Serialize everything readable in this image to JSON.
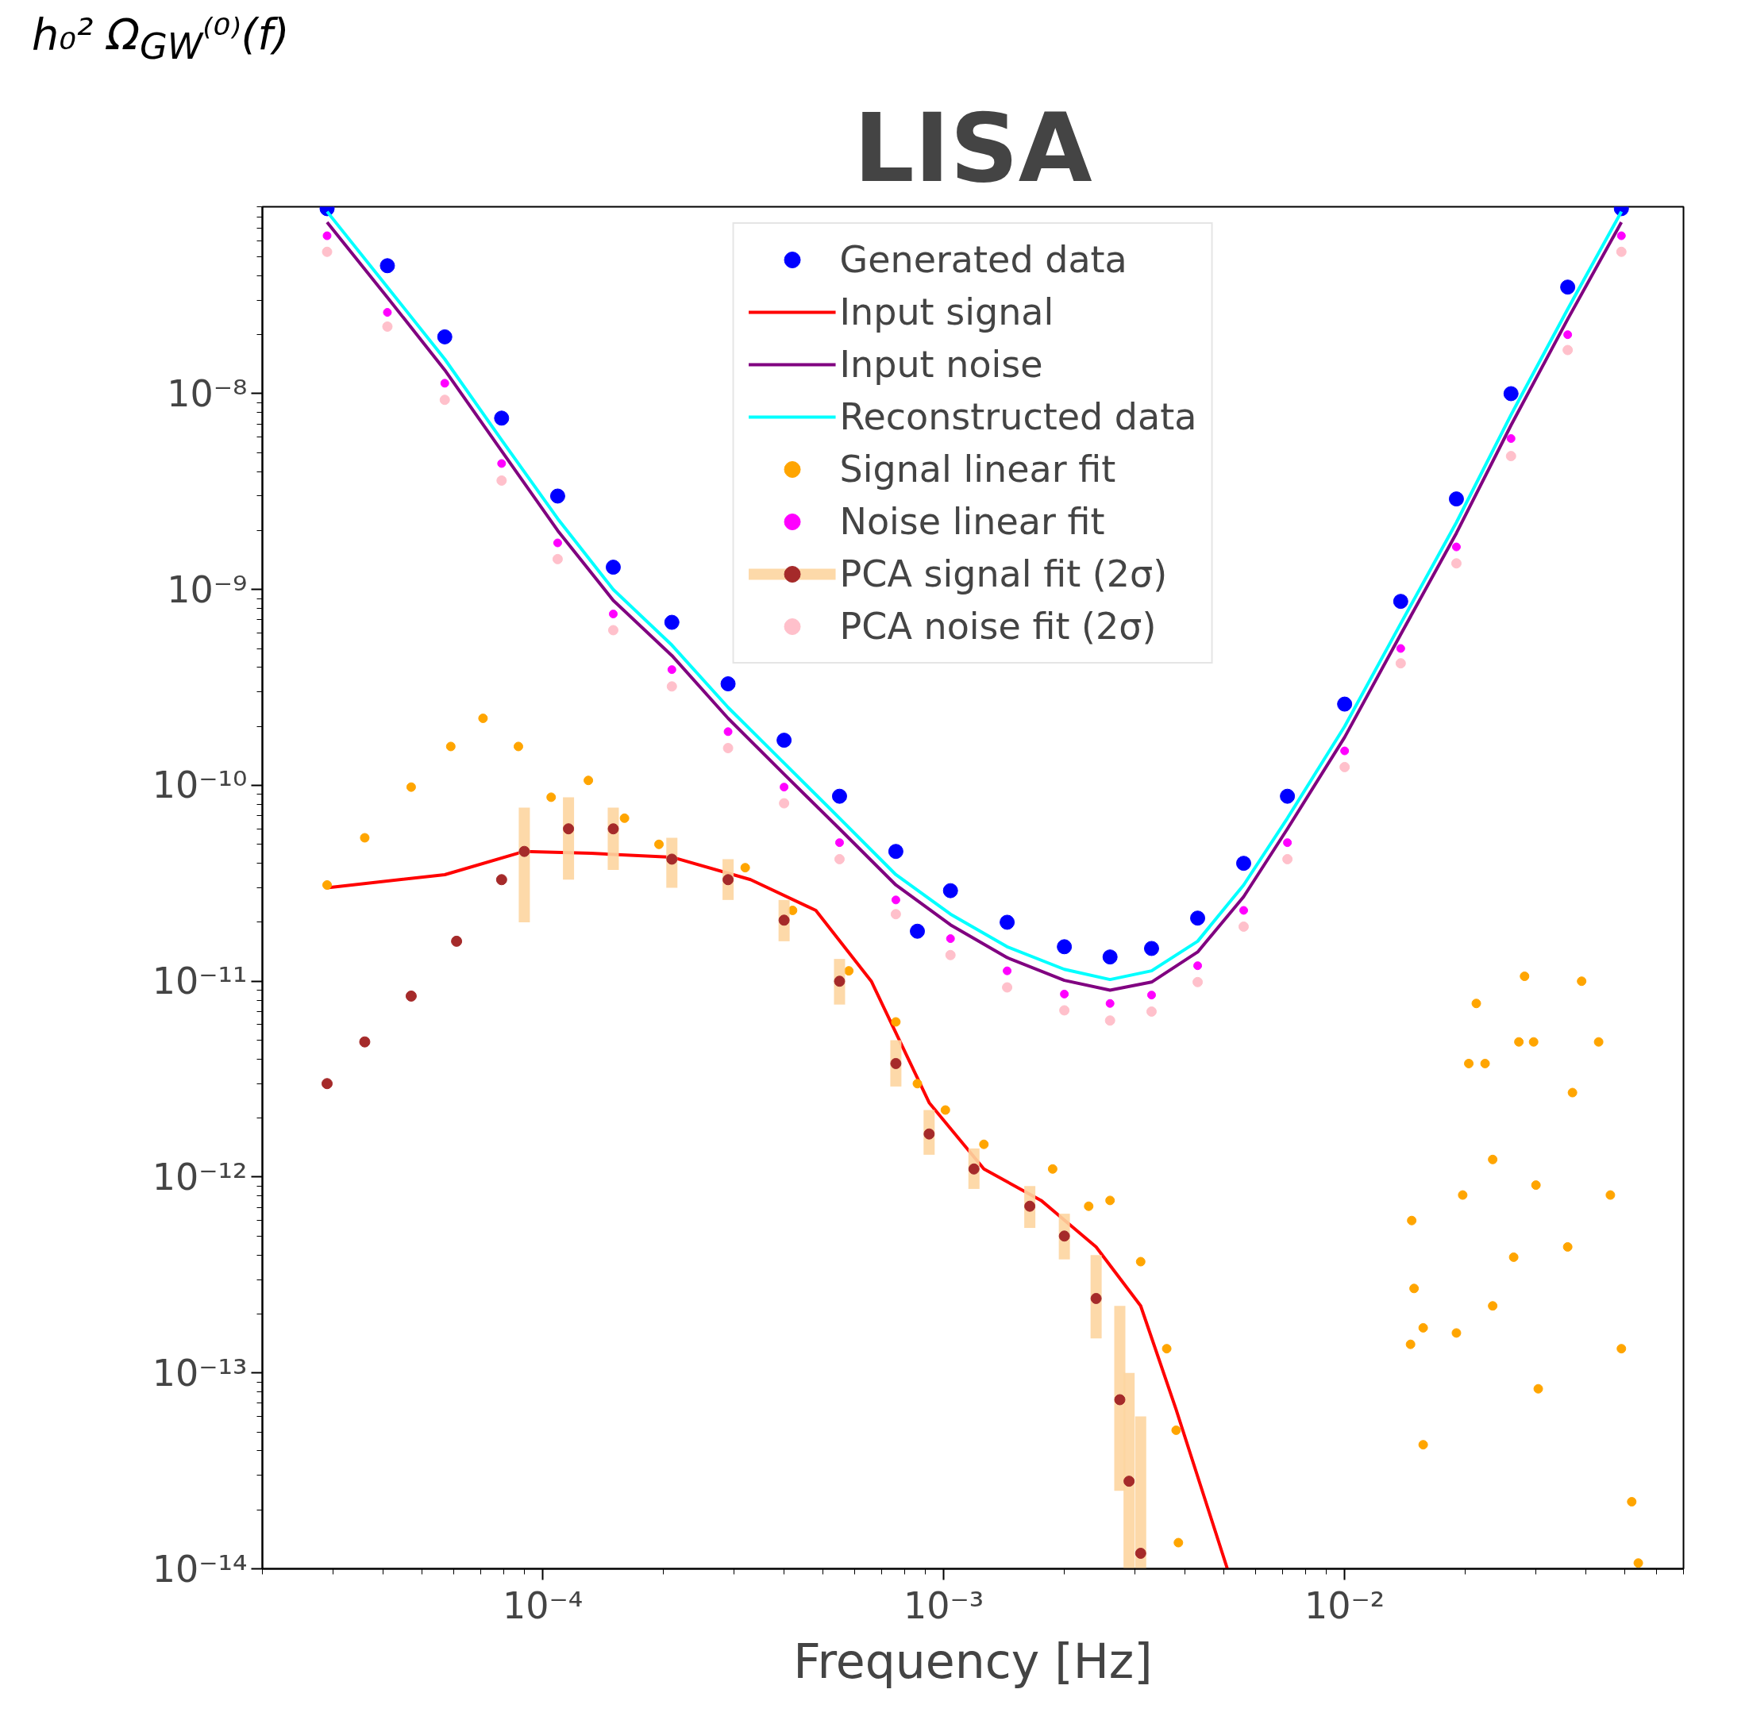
{
  "chart_data": {
    "type": "scatter",
    "title": "LISA",
    "xlabel": "Frequency [Hz]",
    "ylabel": "h₀² Ω$_{GW}$⁽⁰⁾(f)",
    "log": "xy",
    "grid": false,
    "legend": "top",
    "xlim": [
      2e-05,
      0.07
    ],
    "ylim": [
      1e-14,
      9e-08
    ],
    "xticks": [
      {
        "value": 0.0001,
        "label": "10⁻⁴"
      },
      {
        "value": 0.001,
        "label": "10⁻³"
      },
      {
        "value": 0.01,
        "label": "10⁻²"
      }
    ],
    "yticks": [
      {
        "value": 1e-14,
        "label": "10⁻¹⁴"
      },
      {
        "value": 1e-13,
        "label": "10⁻¹³"
      },
      {
        "value": 1e-12,
        "label": "10⁻¹²"
      },
      {
        "value": 1e-11,
        "label": "10⁻¹¹"
      },
      {
        "value": 1e-10,
        "label": "10⁻¹⁰"
      },
      {
        "value": 1e-09,
        "label": "10⁻⁹"
      },
      {
        "value": 1e-08,
        "label": "10⁻⁸"
      }
    ],
    "series": [
      {
        "name": "Generated data",
        "color": "#0000ff",
        "x": [
          2.9e-05,
          4.1e-05,
          5.7e-05,
          7.9e-05,
          0.000109,
          0.00015,
          0.00021,
          0.00029,
          0.0004,
          0.00055,
          0.00076,
          0.00086,
          0.00104,
          0.00144,
          0.002,
          0.0026,
          0.0033,
          0.0043,
          0.0056,
          0.0072,
          0.01,
          0.0138,
          0.019,
          0.026,
          0.036,
          0.049
        ],
        "values": [
          8.8e-08,
          4.5e-08,
          1.95e-08,
          7.5e-09,
          3e-09,
          1.3e-09,
          6.8e-10,
          3.3e-10,
          1.7e-10,
          8.8e-11,
          4.6e-11,
          1.8e-11,
          2.9e-11,
          2e-11,
          1.5e-11,
          1.33e-11,
          1.47e-11,
          2.1e-11,
          4e-11,
          8.8e-11,
          2.6e-10,
          8.7e-10,
          2.9e-09,
          1e-08,
          3.5e-08,
          8.8e-08
        ]
      },
      {
        "name": "Input signal",
        "type": "line",
        "color": "#ff0000",
        "x": [
          2.9e-05,
          5.7e-05,
          9e-05,
          0.000132,
          0.00021,
          0.00033,
          0.00048,
          0.00066,
          0.00092,
          0.00126,
          0.00175,
          0.0024,
          0.0031,
          0.0038,
          0.0051
        ],
        "values": [
          3e-11,
          3.5e-11,
          4.6e-11,
          4.5e-11,
          4.3e-11,
          3.3e-11,
          2.3e-11,
          1e-11,
          2.4e-12,
          1.1e-12,
          7.6e-13,
          4.4e-13,
          2.2e-13,
          6.5e-14,
          1e-14
        ]
      },
      {
        "name": "Input noise",
        "type": "line",
        "color": "#800080",
        "x": [
          2.9e-05,
          4.1e-05,
          5.7e-05,
          7.9e-05,
          0.000109,
          0.00015,
          0.00021,
          0.00029,
          0.0004,
          0.00055,
          0.00076,
          0.00104,
          0.00144,
          0.002,
          0.0026,
          0.0033,
          0.0043,
          0.0056,
          0.0072,
          0.01,
          0.0138,
          0.019,
          0.026,
          0.036,
          0.049
        ],
        "values": [
          7.5e-08,
          3.1e-08,
          1.32e-08,
          5.1e-09,
          2e-09,
          8.8e-10,
          4.6e-10,
          2.2e-10,
          1.14e-10,
          6e-11,
          3.1e-11,
          1.94e-11,
          1.32e-11,
          1.01e-11,
          9e-12,
          9.9e-12,
          1.41e-11,
          2.7e-11,
          6e-11,
          1.76e-10,
          5.9e-10,
          1.94e-09,
          6.9e-09,
          2.4e-08,
          7.5e-08
        ]
      },
      {
        "name": "Reconstructed data",
        "type": "line",
        "color": "#00ffff",
        "x": [
          2.9e-05,
          4.1e-05,
          5.7e-05,
          7.9e-05,
          0.000109,
          0.00015,
          0.00021,
          0.00029,
          0.0004,
          0.00055,
          0.00076,
          0.00104,
          0.00144,
          0.002,
          0.0026,
          0.0033,
          0.0043,
          0.0056,
          0.0072,
          0.01,
          0.0138,
          0.019,
          0.026,
          0.036,
          0.049
        ],
        "values": [
          8.5e-08,
          3.5e-08,
          1.5e-08,
          5.8e-09,
          2.3e-09,
          1e-09,
          5.2e-10,
          2.5e-10,
          1.3e-10,
          6.8e-11,
          3.5e-11,
          2.2e-11,
          1.5e-11,
          1.15e-11,
          1.02e-11,
          1.13e-11,
          1.6e-11,
          3.1e-11,
          6.8e-11,
          2e-10,
          6.7e-10,
          2.2e-09,
          7.8e-09,
          2.7e-08,
          8.5e-08
        ]
      },
      {
        "name": "Signal linear fit",
        "color": "#ffa500",
        "x": [
          2.9e-05,
          3.6e-05,
          4.7e-05,
          5.9e-05,
          7.1e-05,
          8.7e-05,
          0.000105,
          0.00013,
          0.00016,
          0.000195,
          0.00032,
          0.00042,
          0.00058,
          0.00076,
          0.00086,
          0.00101,
          0.00126,
          0.00187,
          0.0023,
          0.0026,
          0.0031,
          0.0036,
          0.0038,
          0.00385,
          0.0147,
          0.0149,
          0.0146,
          0.0157,
          0.0157,
          0.019,
          0.0197,
          0.0204,
          0.0213,
          0.0224,
          0.0234,
          0.0234,
          0.0264,
          0.0272,
          0.0281,
          0.0296,
          0.03,
          0.0304,
          0.036,
          0.037,
          0.039,
          0.043,
          0.046,
          0.049,
          0.052,
          0.054
        ],
        "values": [
          3.1e-11,
          5.4e-11,
          9.8e-11,
          1.58e-10,
          2.2e-10,
          1.58e-10,
          8.7e-11,
          1.06e-10,
          6.8e-11,
          5e-11,
          3.8e-11,
          2.3e-11,
          1.13e-11,
          6.2e-12,
          3e-12,
          2.2e-12,
          1.47e-12,
          1.1e-12,
          7.1e-13,
          7.6e-13,
          3.7e-13,
          1.33e-13,
          5.1e-14,
          1.36e-14,
          6e-13,
          2.7e-13,
          1.4e-13,
          1.7e-13,
          4.3e-14,
          1.6e-13,
          8.1e-13,
          3.8e-12,
          7.7e-12,
          3.8e-12,
          1.23e-12,
          2.2e-13,
          3.9e-13,
          4.9e-12,
          1.06e-11,
          4.9e-12,
          9.1e-13,
          8.3e-14,
          4.4e-13,
          2.7e-12,
          1e-11,
          4.9e-12,
          8.1e-13,
          1.33e-13,
          2.2e-14,
          1.07e-14
        ]
      },
      {
        "name": "Noise linear fit",
        "color": "#ff00ff",
        "x": [
          2.9e-05,
          4.1e-05,
          5.7e-05,
          7.9e-05,
          0.000109,
          0.00015,
          0.00021,
          0.00029,
          0.0004,
          0.00055,
          0.00076,
          0.00104,
          0.00144,
          0.002,
          0.0026,
          0.0033,
          0.0043,
          0.0056,
          0.0072,
          0.01,
          0.0138,
          0.019,
          0.026,
          0.036,
          0.049
        ],
        "values": [
          6.4e-08,
          2.6e-08,
          1.13e-08,
          4.4e-09,
          1.73e-09,
          7.5e-10,
          3.9e-10,
          1.88e-10,
          9.8e-11,
          5.1e-11,
          2.6e-11,
          1.65e-11,
          1.13e-11,
          8.6e-12,
          7.7e-12,
          8.5e-12,
          1.2e-11,
          2.3e-11,
          5.1e-11,
          1.5e-10,
          5e-10,
          1.65e-09,
          5.9e-09,
          2e-08,
          6.4e-08
        ]
      },
      {
        "name": "PCA signal fit (2σ)",
        "color": "#a52a2a",
        "x": [
          2.9e-05,
          3.6e-05,
          4.7e-05,
          6.1e-05,
          7.9e-05,
          9e-05,
          0.000116,
          0.00015,
          0.00021,
          0.00029,
          0.0004,
          0.00055,
          0.00076,
          0.00092,
          0.00119,
          0.00164,
          0.002,
          0.0024,
          0.00275,
          0.0029,
          0.0031
        ],
        "values": [
          3e-12,
          4.9e-12,
          8.4e-12,
          1.6e-11,
          3.3e-11,
          4.6e-11,
          6e-11,
          6e-11,
          4.2e-11,
          3.3e-11,
          2.05e-11,
          1e-11,
          3.8e-12,
          1.66e-12,
          1.1e-12,
          7.1e-13,
          5e-13,
          2.4e-13,
          7.3e-14,
          2.8e-14,
          1.2e-14
        ],
        "errors": [
          null,
          null,
          null,
          null,
          null,
          [
            2e-11,
            7.7e-11
          ],
          [
            3.3e-11,
            8.7e-11
          ],
          [
            3.7e-11,
            7.7e-11
          ],
          [
            3e-11,
            5.4e-11
          ],
          [
            2.6e-11,
            4.2e-11
          ],
          [
            1.6e-11,
            2.6e-11
          ],
          [
            7.6e-12,
            1.3e-11
          ],
          [
            2.9e-12,
            5e-12
          ],
          [
            1.3e-12,
            2.2e-12
          ],
          [
            8.7e-13,
            1.4e-12
          ],
          [
            5.5e-13,
            9e-13
          ],
          [
            3.8e-13,
            6.5e-13
          ],
          [
            1.5e-13,
            4e-13
          ],
          [
            2.5e-14,
            2.2e-13
          ],
          [
            1e-14,
            1e-13
          ],
          [
            1e-14,
            6e-14
          ]
        ]
      },
      {
        "name": "PCA noise fit (2σ)",
        "color": "#ffc0cb",
        "x": [
          2.9e-05,
          4.1e-05,
          5.7e-05,
          7.9e-05,
          0.000109,
          0.00015,
          0.00021,
          0.00029,
          0.0004,
          0.00055,
          0.00076,
          0.00104,
          0.00144,
          0.002,
          0.0026,
          0.0033,
          0.0043,
          0.0056,
          0.0072,
          0.01,
          0.0138,
          0.019,
          0.026,
          0.036,
          0.049
        ],
        "values": [
          5.3e-08,
          2.2e-08,
          9.3e-09,
          3.6e-09,
          1.43e-09,
          6.2e-10,
          3.2e-10,
          1.55e-10,
          8.1e-11,
          4.2e-11,
          2.2e-11,
          1.36e-11,
          9.3e-12,
          7.1e-12,
          6.3e-12,
          7e-12,
          9.9e-12,
          1.9e-11,
          4.2e-11,
          1.24e-10,
          4.2e-10,
          1.36e-09,
          4.8e-09,
          1.67e-08,
          5.3e-08
        ]
      }
    ]
  }
}
